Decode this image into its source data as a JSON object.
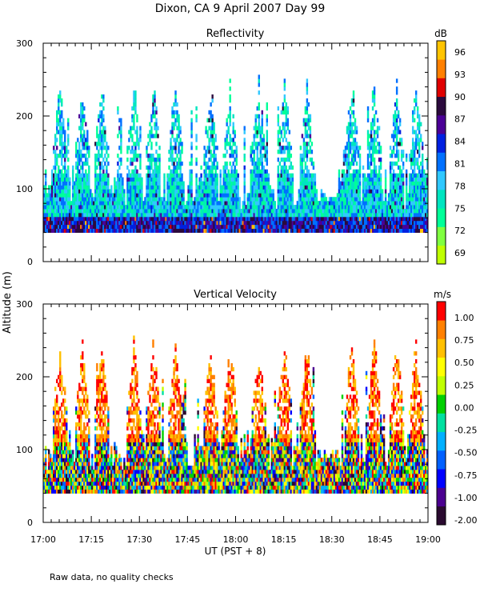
{
  "title": "Dixon, CA  9 April 2007  Day  99",
  "ylabel": "Altitude (m)",
  "xlabel": "UT  (PST + 8)",
  "footnote": "Raw data, no quality checks",
  "colors": {
    "reflectivity": [
      "#bfff00",
      "#80ff40",
      "#00ff99",
      "#00e5c0",
      "#30c8ff",
      "#0070ff",
      "#0020e0",
      "#4b0096",
      "#2b0a3d",
      "#e00000",
      "#ff8000",
      "#ffc400"
    ],
    "velocity": [
      "#2a0a30",
      "#4b0090",
      "#0000ff",
      "#0060ff",
      "#00b0ff",
      "#00e0a0",
      "#00d000",
      "#c0ff00",
      "#ffff00",
      "#ffc000",
      "#ff8000",
      "#ff0000"
    ]
  },
  "chart_data": [
    {
      "type": "heatmap",
      "title": "Reflectivity",
      "unit": "dB",
      "ylim": [
        0,
        300
      ],
      "yticks": [
        0,
        100,
        200,
        300
      ],
      "xlim_minutes": [
        0,
        120
      ],
      "xtick_labels": [
        "17:00",
        "17:15",
        "17:30",
        "17:45",
        "18:00",
        "18:15",
        "18:30",
        "18:45",
        "19:00"
      ],
      "colorbar_ticks": [
        "69",
        "72",
        "75",
        "78",
        "81",
        "84",
        "87",
        "90",
        "93",
        "96"
      ],
      "data_bottom_m": 40,
      "value_range": [
        67.5,
        97.5
      ],
      "notes": "Range-time radar returns between about 40 m and 280 m altitude; dense echoes below 120 m, tall plumes reaching ~240-280 m near 17:05, 17:35, 18:07 and 18:35."
    },
    {
      "type": "heatmap",
      "title": "Vertical Velocity",
      "unit": "m/s",
      "ylim": [
        0,
        300
      ],
      "yticks": [
        0,
        100,
        200,
        300
      ],
      "xlim_minutes": [
        0,
        120
      ],
      "xtick_labels": [
        "17:00",
        "17:15",
        "17:30",
        "17:45",
        "18:00",
        "18:15",
        "18:30",
        "18:45",
        "19:00"
      ],
      "colorbar_ticks": [
        "1.00",
        "0.75",
        "0.50",
        "0.25",
        "0.00",
        "-0.25",
        "-0.50",
        "-0.75",
        "-1.00",
        "-2.00"
      ],
      "data_bottom_m": 40,
      "value_range": [
        -2.0,
        1.25
      ],
      "notes": "Mixed updrafts and downdrafts from about 40 m to 280 m; strong positive velocities in plumes near 17:05, 17:25, 18:07 and 18:37."
    }
  ]
}
